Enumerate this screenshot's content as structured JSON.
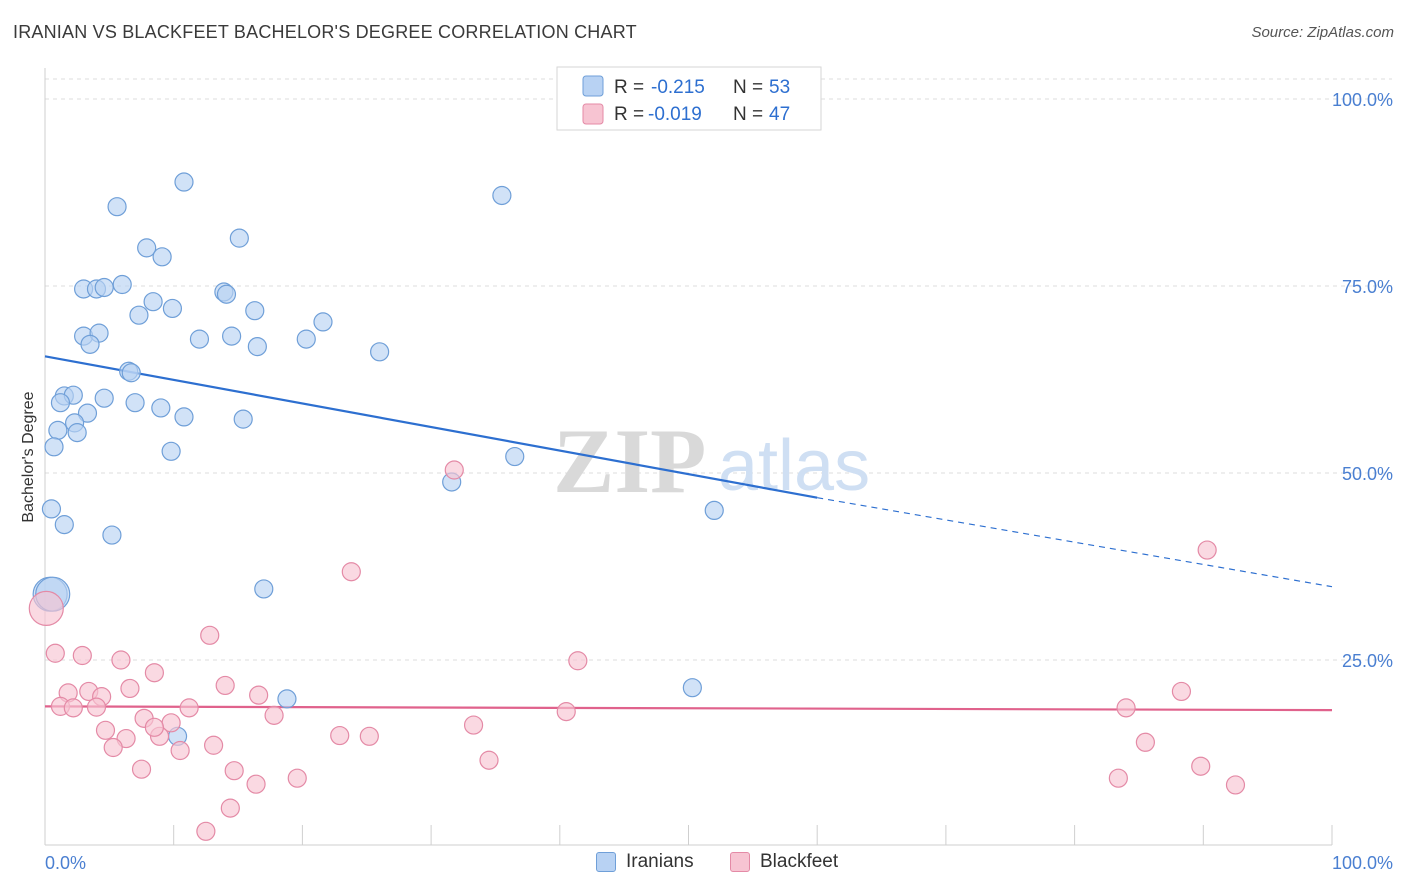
{
  "title": "IRANIAN VS BLACKFEET BACHELOR'S DEGREE CORRELATION CHART",
  "source": "Source: ZipAtlas.com",
  "watermark": {
    "zip": "ZIP",
    "atlas": "atlas"
  },
  "colors": {
    "iranians_fill": "#b8d2f3",
    "iranians_stroke": "#6f9fd8",
    "iranians_line": "#2d6fd0",
    "blackfeet_fill": "#f7c4d2",
    "blackfeet_stroke": "#e48aa6",
    "blackfeet_line": "#e0628c",
    "axis_text": "#4a7fd1",
    "grid": "#dddddd"
  },
  "legend": {
    "rows": [
      {
        "r_label": "R =",
        "r_value": "-0.215",
        "n_label": "N =",
        "n_value": "53"
      },
      {
        "r_label": "R =",
        "r_value": "-0.019",
        "n_label": "N =",
        "n_value": "47"
      }
    ]
  },
  "bottom_legend": {
    "series1": "Iranians",
    "series2": "Blackfeet"
  },
  "chart_data": {
    "type": "scatter",
    "title": "IRANIAN VS BLACKFEET BACHELOR'S DEGREE CORRELATION CHART",
    "xlabel": "",
    "ylabel": "Bachelor's Degree",
    "xlim": [
      0,
      100
    ],
    "ylim": [
      0,
      100
    ],
    "x_tick_labels": [
      "0.0%",
      "100.0%"
    ],
    "y_tick_labels": [
      {
        "value": 25,
        "label": "25.0%"
      },
      {
        "value": 50,
        "label": "50.0%"
      },
      {
        "value": 75,
        "label": "75.0%"
      },
      {
        "value": 100,
        "label": "100.0%"
      }
    ],
    "series": [
      {
        "name": "Iranians",
        "R": -0.215,
        "N": 53,
        "trend": {
          "x0": 0,
          "y0": 65.6,
          "x1": 60,
          "y1": 46.7,
          "dash_to_x": 100,
          "dash_to_y": 34.8
        },
        "points": [
          {
            "x": 5.6,
            "y": 85.6
          },
          {
            "x": 10.8,
            "y": 88.9
          },
          {
            "x": 15.1,
            "y": 81.4
          },
          {
            "x": 35.5,
            "y": 87.1
          },
          {
            "x": 7.9,
            "y": 80.1
          },
          {
            "x": 9.1,
            "y": 78.9
          },
          {
            "x": 3.0,
            "y": 74.6
          },
          {
            "x": 4.0,
            "y": 74.6
          },
          {
            "x": 4.6,
            "y": 74.8
          },
          {
            "x": 6.0,
            "y": 75.2
          },
          {
            "x": 8.4,
            "y": 72.9
          },
          {
            "x": 7.3,
            "y": 71.1
          },
          {
            "x": 9.9,
            "y": 72.0
          },
          {
            "x": 13.9,
            "y": 74.2
          },
          {
            "x": 14.1,
            "y": 73.9
          },
          {
            "x": 16.3,
            "y": 71.7
          },
          {
            "x": 21.6,
            "y": 70.2
          },
          {
            "x": 3.0,
            "y": 68.3
          },
          {
            "x": 4.2,
            "y": 68.7
          },
          {
            "x": 3.5,
            "y": 67.2
          },
          {
            "x": 12.0,
            "y": 67.9
          },
          {
            "x": 14.5,
            "y": 68.3
          },
          {
            "x": 16.5,
            "y": 66.9
          },
          {
            "x": 20.3,
            "y": 67.9
          },
          {
            "x": 26.0,
            "y": 66.2
          },
          {
            "x": 6.5,
            "y": 63.6
          },
          {
            "x": 6.7,
            "y": 63.4
          },
          {
            "x": 1.5,
            "y": 60.3
          },
          {
            "x": 2.2,
            "y": 60.4
          },
          {
            "x": 1.2,
            "y": 59.4
          },
          {
            "x": 4.6,
            "y": 60.0
          },
          {
            "x": 7.0,
            "y": 59.4
          },
          {
            "x": 3.3,
            "y": 58.0
          },
          {
            "x": 2.3,
            "y": 56.7
          },
          {
            "x": 9.0,
            "y": 58.7
          },
          {
            "x": 10.8,
            "y": 57.5
          },
          {
            "x": 15.4,
            "y": 57.2
          },
          {
            "x": 1.0,
            "y": 55.7
          },
          {
            "x": 2.5,
            "y": 55.4
          },
          {
            "x": 0.7,
            "y": 53.5
          },
          {
            "x": 9.8,
            "y": 52.9
          },
          {
            "x": 36.5,
            "y": 52.2
          },
          {
            "x": 31.6,
            "y": 48.8
          },
          {
            "x": 0.5,
            "y": 45.2
          },
          {
            "x": 1.5,
            "y": 43.1
          },
          {
            "x": 5.2,
            "y": 41.7
          },
          {
            "x": 52.0,
            "y": 45.0
          },
          {
            "x": 0.4,
            "y": 33.8
          },
          {
            "x": 17.0,
            "y": 34.5
          },
          {
            "x": 18.8,
            "y": 19.8
          },
          {
            "x": 50.3,
            "y": 21.3
          },
          {
            "x": 10.3,
            "y": 14.8
          },
          {
            "x": 0.6,
            "y": 33.8
          }
        ]
      },
      {
        "name": "Blackfeet",
        "R": -0.019,
        "N": 47,
        "trend": {
          "x0": 0,
          "y0": 18.8,
          "x1": 100,
          "y1": 18.3
        },
        "points": [
          {
            "x": 31.8,
            "y": 50.4
          },
          {
            "x": 23.8,
            "y": 36.8
          },
          {
            "x": 90.3,
            "y": 39.7
          },
          {
            "x": 0.1,
            "y": 31.9
          },
          {
            "x": 12.8,
            "y": 28.3
          },
          {
            "x": 0.8,
            "y": 25.9
          },
          {
            "x": 2.9,
            "y": 25.6
          },
          {
            "x": 5.9,
            "y": 25.0
          },
          {
            "x": 41.4,
            "y": 24.9
          },
          {
            "x": 8.5,
            "y": 23.3
          },
          {
            "x": 6.6,
            "y": 21.2
          },
          {
            "x": 14.0,
            "y": 21.6
          },
          {
            "x": 1.8,
            "y": 20.6
          },
          {
            "x": 3.4,
            "y": 20.8
          },
          {
            "x": 4.4,
            "y": 20.1
          },
          {
            "x": 16.6,
            "y": 20.3
          },
          {
            "x": 88.3,
            "y": 20.8
          },
          {
            "x": 1.2,
            "y": 18.8
          },
          {
            "x": 2.2,
            "y": 18.6
          },
          {
            "x": 4.0,
            "y": 18.7
          },
          {
            "x": 11.2,
            "y": 18.6
          },
          {
            "x": 40.5,
            "y": 18.1
          },
          {
            "x": 84.0,
            "y": 18.6
          },
          {
            "x": 7.7,
            "y": 17.2
          },
          {
            "x": 9.8,
            "y": 16.6
          },
          {
            "x": 17.8,
            "y": 17.6
          },
          {
            "x": 33.3,
            "y": 16.3
          },
          {
            "x": 4.7,
            "y": 15.6
          },
          {
            "x": 6.3,
            "y": 14.5
          },
          {
            "x": 8.9,
            "y": 14.8
          },
          {
            "x": 22.9,
            "y": 14.9
          },
          {
            "x": 25.2,
            "y": 14.8
          },
          {
            "x": 5.3,
            "y": 13.3
          },
          {
            "x": 13.1,
            "y": 13.6
          },
          {
            "x": 10.5,
            "y": 12.9
          },
          {
            "x": 85.5,
            "y": 14.0
          },
          {
            "x": 34.5,
            "y": 11.6
          },
          {
            "x": 7.5,
            "y": 10.4
          },
          {
            "x": 14.7,
            "y": 10.2
          },
          {
            "x": 89.8,
            "y": 10.8
          },
          {
            "x": 16.4,
            "y": 8.4
          },
          {
            "x": 19.6,
            "y": 9.2
          },
          {
            "x": 83.4,
            "y": 9.2
          },
          {
            "x": 92.5,
            "y": 8.3
          },
          {
            "x": 14.4,
            "y": 5.2
          },
          {
            "x": 12.5,
            "y": 2.1
          },
          {
            "x": 8.5,
            "y": 16.0
          }
        ]
      }
    ]
  }
}
